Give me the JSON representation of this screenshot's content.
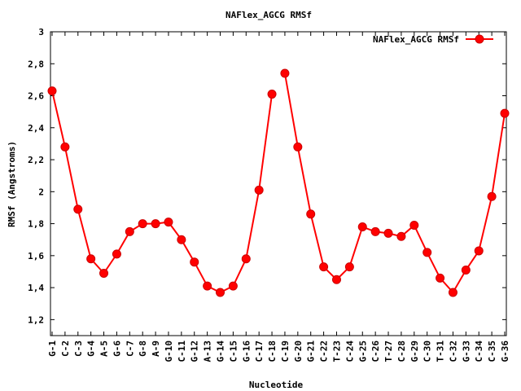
{
  "colors": {
    "series": "#ff0000",
    "series_edge": "#cc0000",
    "axis": "#000000",
    "background": "#ffffff"
  },
  "chart_data": {
    "type": "line",
    "title": "NAFlex_AGCG RMSf",
    "xlabel": "Nucleotide",
    "ylabel": "RMSf (Angstroms)",
    "ylim": [
      1.1,
      3.0
    ],
    "yticks": [
      "1,2",
      "1,4",
      "1,6",
      "1,8",
      "2",
      "2,2",
      "2,4",
      "2,6",
      "2,8",
      "3"
    ],
    "ytick_values": [
      1.2,
      1.4,
      1.6,
      1.8,
      2.0,
      2.2,
      2.4,
      2.6,
      2.8,
      3.0
    ],
    "grid": false,
    "legend": "top-right",
    "categories": [
      "G-1",
      "C-2",
      "C-3",
      "G-4",
      "A-5",
      "G-6",
      "C-7",
      "G-8",
      "A-9",
      "G-10",
      "C-11",
      "G-12",
      "A-13",
      "G-14",
      "C-15",
      "G-16",
      "C-17",
      "C-18",
      "C-19",
      "G-20",
      "G-21",
      "C-22",
      "T-23",
      "C-24",
      "G-25",
      "C-26",
      "T-27",
      "C-28",
      "G-29",
      "C-30",
      "T-31",
      "C-32",
      "G-33",
      "C-34",
      "C-35",
      "G-36"
    ],
    "series": [
      {
        "name": "NAFlex_AGCG RMSf",
        "segments": [
          [
            2.63,
            2.28,
            1.89,
            1.58,
            1.49,
            1.61,
            1.75,
            1.8,
            1.8,
            1.81,
            1.7,
            1.56,
            1.41,
            1.37,
            1.41,
            1.58,
            2.01,
            2.61
          ],
          [
            2.74,
            2.28,
            1.86,
            1.53,
            1.45,
            1.53,
            1.78,
            1.75,
            1.74,
            1.72,
            1.79,
            1.62,
            1.46,
            1.37,
            1.51,
            1.63,
            1.97,
            2.49
          ]
        ]
      }
    ]
  }
}
